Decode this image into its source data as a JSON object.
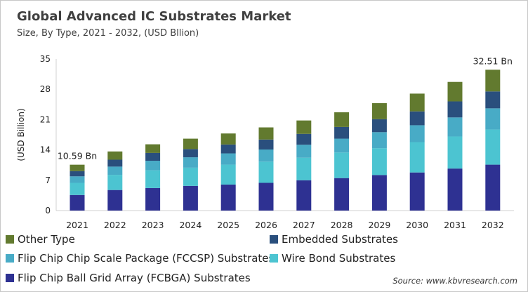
{
  "chart_data": {
    "type": "bar",
    "stacked": true,
    "title": "Global Advanced IC Substrates Market",
    "subtitle": "Size, By Type, 2021 - 2032, (USD Bllion)",
    "ylabel": "(USD Billion)",
    "xlabel": "",
    "ylim": [
      0,
      35
    ],
    "yticks": [
      0,
      7,
      14,
      21,
      28,
      35
    ],
    "grid": false,
    "legend_position": "bottom",
    "categories": [
      "2021",
      "2022",
      "2023",
      "2024",
      "2025",
      "2026",
      "2027",
      "2028",
      "2029",
      "2030",
      "2031",
      "2032"
    ],
    "series": [
      {
        "name": "Flip Chip Ball Grid Array (FCBGA) Substrates",
        "color": "#2e3192",
        "values": [
          3.6,
          4.75,
          5.2,
          5.7,
          6.0,
          6.4,
          7.0,
          7.5,
          8.2,
          8.8,
          9.7,
          10.6
        ]
      },
      {
        "name": "Wire Bond Substrates",
        "color": "#4cc4d1",
        "values": [
          2.8,
          3.5,
          4.1,
          4.2,
          4.6,
          4.9,
          5.2,
          5.9,
          6.2,
          7.0,
          7.4,
          8.1
        ]
      },
      {
        "name": "Flip Chip Chip Scale Package (FCCSP) Substrates",
        "color": "#48abc6",
        "values": [
          1.5,
          1.9,
          2.2,
          2.4,
          2.6,
          2.8,
          3.0,
          3.2,
          3.7,
          3.9,
          4.4,
          4.9
        ]
      },
      {
        "name": "Embedded Substrates",
        "color": "#2a4f7d",
        "values": [
          1.2,
          1.6,
          1.8,
          1.9,
          2.05,
          2.3,
          2.5,
          2.7,
          3.0,
          3.2,
          3.7,
          3.9
        ]
      },
      {
        "name": "Other Type",
        "color": "#627a2f",
        "values": [
          1.49,
          1.9,
          2.0,
          2.4,
          2.55,
          2.8,
          3.1,
          3.4,
          3.7,
          4.1,
          4.5,
          5.01
        ]
      }
    ],
    "annotations": [
      {
        "category": "2021",
        "text": "10.59 Bn"
      },
      {
        "category": "2032",
        "text": "32.51 Bn"
      }
    ],
    "legend_order": [
      "Other Type",
      "Embedded Substrates",
      "Flip Chip Chip Scale Package (FCCSP) Substrates",
      "Wire Bond Substrates",
      "Flip Chip Ball Grid Array (FCBGA) Substrates"
    ]
  },
  "source": "Source: www.kbvresearch.com"
}
